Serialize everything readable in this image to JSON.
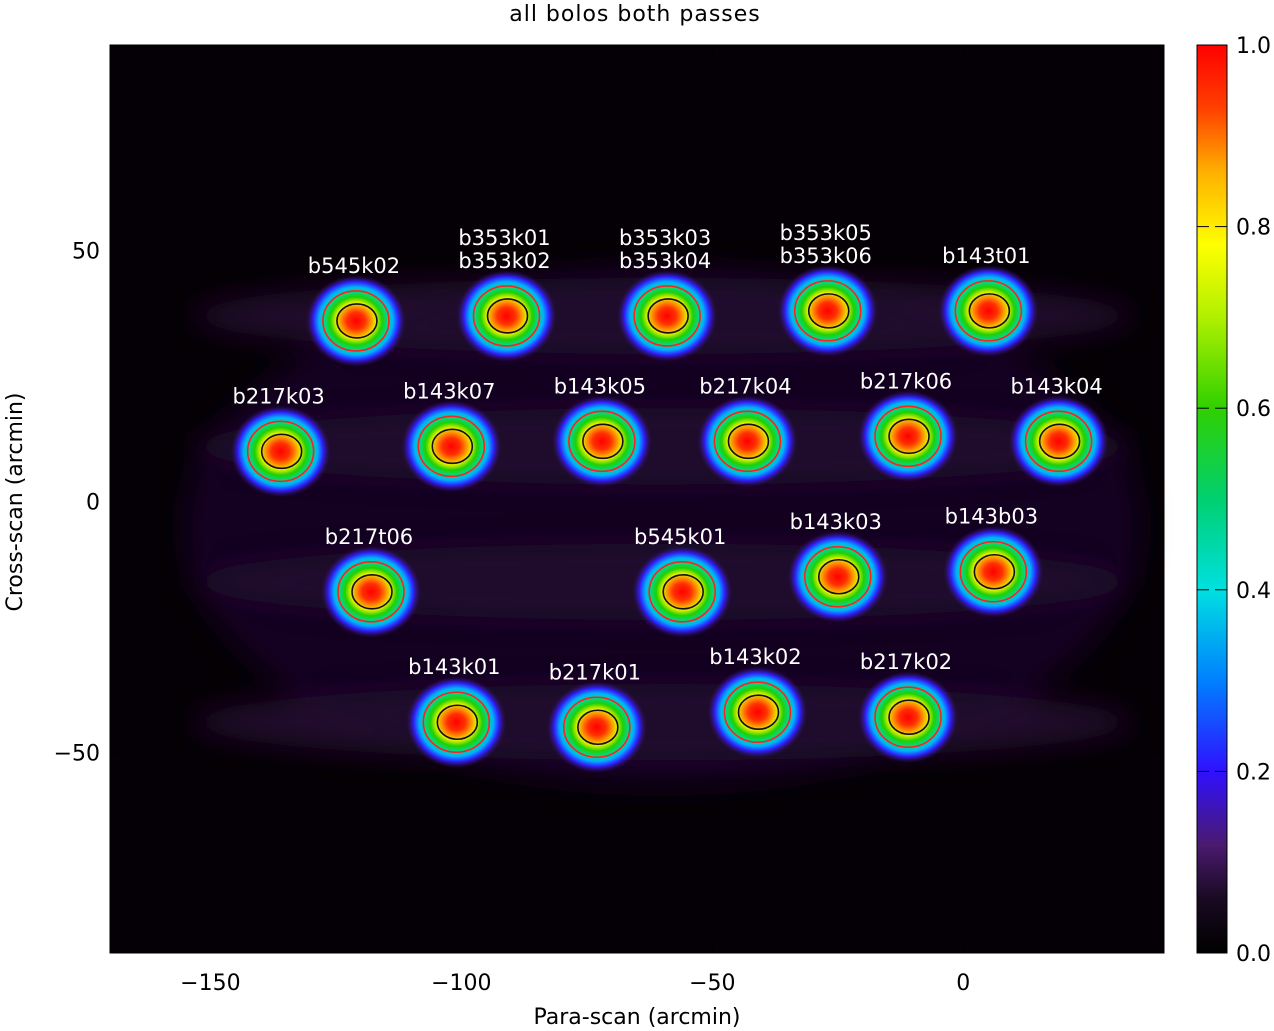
{
  "chart_data": {
    "type": "heatmap",
    "title": "all bolos both passes",
    "xlabel": "Para-scan (arcmin)",
    "ylabel": "Cross-scan (arcmin)",
    "xlim": [
      -170,
      40
    ],
    "ylim": [
      -90,
      91
    ],
    "x_ticks": [
      -150,
      -100,
      -50,
      0
    ],
    "y_ticks": [
      -50,
      0,
      50
    ],
    "x_tick_labels": [
      "−150",
      "−100",
      "−50",
      "0"
    ],
    "y_tick_labels": [
      "−50",
      "0",
      "50"
    ],
    "colorbar": {
      "range": [
        0.0,
        1.0
      ],
      "ticks": [
        0.0,
        0.2,
        0.4,
        0.6,
        0.8,
        1.0
      ],
      "tick_labels": [
        "0.0",
        "0.2",
        "0.4",
        "0.6",
        "0.8",
        "1.0"
      ],
      "colormap": [
        "#000000",
        "#2a0a3c",
        "#5a1a8c",
        "#3000ff",
        "#00a0ff",
        "#00e6d0",
        "#00d060",
        "#80e000",
        "#ffff00",
        "#ff9000",
        "#ff2000",
        "#ff0000"
      ]
    },
    "contour_levels": [
      0.5,
      0.8
    ],
    "beams": [
      {
        "label": "b545k02",
        "x": -121,
        "y": 36,
        "peak": 1.0
      },
      {
        "label": "b353k01",
        "x": -91,
        "y": 37,
        "peak": 0.95
      },
      {
        "label": "b353k02",
        "x": -91,
        "y": 37,
        "peak": 0.95
      },
      {
        "label": "b353k03",
        "x": -59,
        "y": 37,
        "peak": 0.95
      },
      {
        "label": "b353k04",
        "x": -59,
        "y": 37,
        "peak": 0.95
      },
      {
        "label": "b353k05",
        "x": -27,
        "y": 38,
        "peak": 0.95
      },
      {
        "label": "b353k06",
        "x": -27,
        "y": 38,
        "peak": 0.95
      },
      {
        "label": "b143t01",
        "x": 5,
        "y": 38,
        "peak": 0.98
      },
      {
        "label": "b217k03",
        "x": -136,
        "y": 10,
        "peak": 0.95
      },
      {
        "label": "b143k07",
        "x": -102,
        "y": 11,
        "peak": 0.95
      },
      {
        "label": "b143k05",
        "x": -72,
        "y": 12,
        "peak": 0.95
      },
      {
        "label": "b217k04",
        "x": -43,
        "y": 12,
        "peak": 0.98
      },
      {
        "label": "b217k06",
        "x": -11,
        "y": 13,
        "peak": 0.98
      },
      {
        "label": "b143k04",
        "x": 19,
        "y": 12,
        "peak": 0.98
      },
      {
        "label": "b217t06",
        "x": -118,
        "y": -18,
        "peak": 0.98
      },
      {
        "label": "b545k01",
        "x": -56,
        "y": -18,
        "peak": 1.0
      },
      {
        "label": "b143k03",
        "x": -25,
        "y": -15,
        "peak": 0.95
      },
      {
        "label": "b143b03",
        "x": 6,
        "y": -14,
        "peak": 0.95
      },
      {
        "label": "b143k01",
        "x": -101,
        "y": -44,
        "peak": 1.0
      },
      {
        "label": "b217k01",
        "x": -73,
        "y": -45,
        "peak": 0.98
      },
      {
        "label": "b143k02",
        "x": -41,
        "y": -42,
        "peak": 1.0
      },
      {
        "label": "b217k02",
        "x": -11,
        "y": -43,
        "peak": 1.0
      }
    ],
    "grid": false,
    "legend": "none"
  }
}
